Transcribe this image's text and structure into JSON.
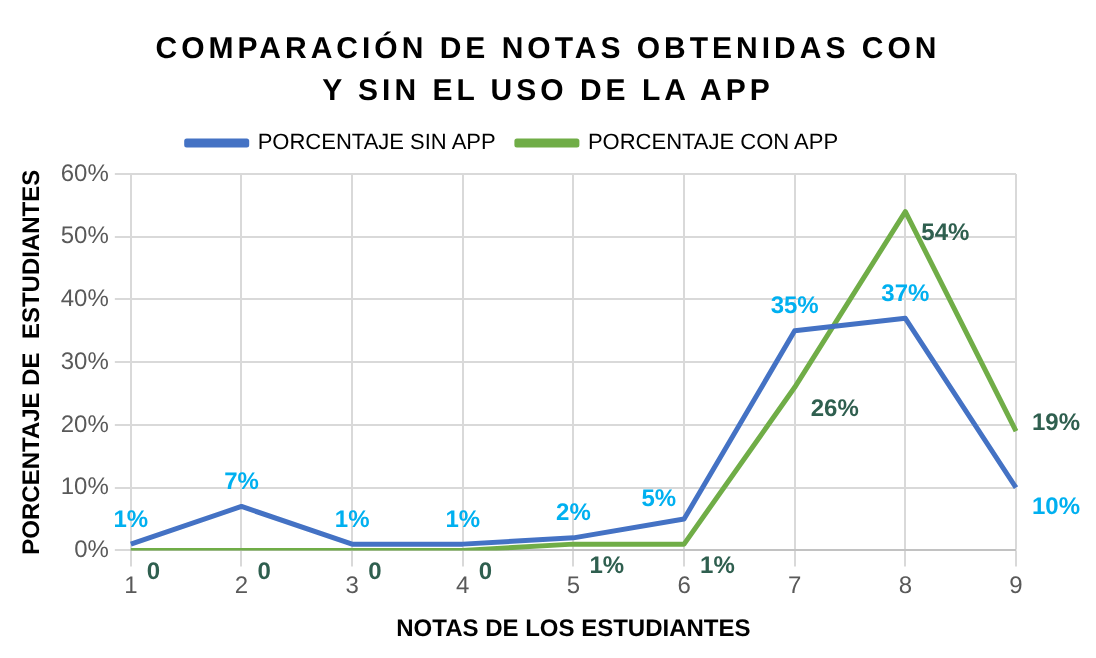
{
  "chart_data": {
    "type": "line",
    "title": "COMPARACIÓN DE NOTAS OBTENIDAS CON Y SIN EL USO DE LA APP",
    "xlabel": "NOTAS DE LOS ESTUDIANTES",
    "ylabel": "PORCENTAJE DE  ESTUDIANTES",
    "categories": [
      "1",
      "2",
      "3",
      "4",
      "5",
      "6",
      "7",
      "8",
      "9"
    ],
    "series": [
      {
        "name": "PORCENTAJE SIN APP",
        "color": "#4472c4",
        "values": [
          1,
          7,
          1,
          1,
          2,
          5,
          35,
          37,
          10
        ],
        "value_labels": [
          "1%",
          "7%",
          "1%",
          "1%",
          "2%",
          "5%",
          "35%",
          "37%",
          "10%"
        ]
      },
      {
        "name": "PORCENTAJE CON APP",
        "color": "#70ad47",
        "values": [
          0,
          0,
          0,
          0,
          1,
          1,
          26,
          54,
          19
        ],
        "value_labels": [
          "0",
          "0",
          "0",
          "0",
          "1%",
          "1%",
          "26%",
          "54%",
          "19%"
        ]
      }
    ],
    "ylim": [
      0,
      60
    ],
    "yticks": [
      {
        "value": 0,
        "label": "0%"
      },
      {
        "value": 10,
        "label": "10%"
      },
      {
        "value": 20,
        "label": "20%"
      },
      {
        "value": 30,
        "label": "30%"
      },
      {
        "value": 40,
        "label": "40%"
      },
      {
        "value": 50,
        "label": "50%"
      },
      {
        "value": 60,
        "label": "60%"
      }
    ],
    "grid": true,
    "legend": "top",
    "marker": "none",
    "line_style": "solid"
  }
}
